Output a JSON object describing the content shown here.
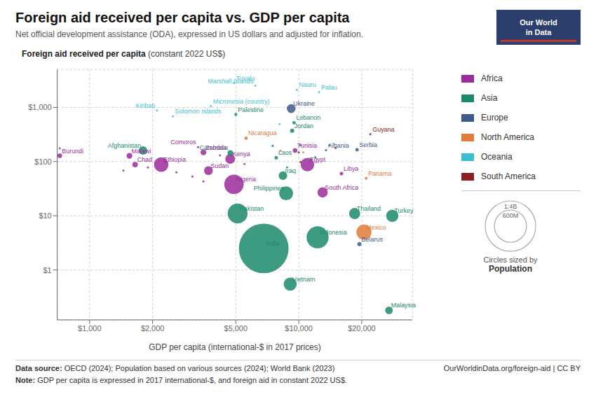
{
  "chart_data": {
    "type": "scatter",
    "title": "Foreign aid received per capita vs. GDP per capita",
    "subtitle": "Net official development assistance (ODA), expressed in US dollars and adjusted for inflation.",
    "ylabel_bold": "Foreign aid received per capita",
    "ylabel_normal": " (constant 2022 US$)",
    "xlabel": "GDP per capita (international-$ in 2017 prices)",
    "log": true,
    "grid": true,
    "xlim": [
      700,
      35000
    ],
    "ylim": [
      0.12,
      5000
    ],
    "xticks": [
      {
        "value": 1000,
        "label": "$1,000"
      },
      {
        "value": 2000,
        "label": "$2,000"
      },
      {
        "value": 5000,
        "label": "$5,000"
      },
      {
        "value": 10000,
        "label": "$10,000"
      },
      {
        "value": 20000,
        "label": "$20,000"
      }
    ],
    "yticks": [
      {
        "value": 1,
        "label": "$1"
      },
      {
        "value": 10,
        "label": "$10"
      },
      {
        "value": 100,
        "label": "$100"
      },
      {
        "value": 1000,
        "label": "$1,000"
      }
    ],
    "series": [
      {
        "name": "Africa",
        "color": "#9B2C9B",
        "labels": [
          "Comoros",
          "Zambia",
          "Kenya",
          "Tunisia",
          "Egypt",
          "Malawi",
          "Chad",
          "Ethiopia",
          "Sudan",
          "Burundi",
          "Nigeria",
          "South Africa",
          "Libya",
          null,
          null,
          null,
          null,
          null,
          null,
          null,
          null,
          null
        ],
        "x": [
          3300,
          3500,
          4700,
          9600,
          11000,
          1550,
          1650,
          2200,
          3700,
          720,
          4900,
          13000,
          16000,
          720,
          1450,
          1900,
          2300,
          2600,
          3100,
          3500,
          4200,
          5500
        ],
        "y": [
          185,
          148,
          112,
          160,
          88,
          128,
          88,
          88,
          68,
          128,
          38,
          27,
          60,
          175,
          68,
          78,
          98,
          63,
          53,
          43,
          130,
          90
        ],
        "population": [
          870000,
          19000000,
          54000000,
          12000000,
          104000000,
          19000000,
          17000000,
          120000000,
          44000000,
          12000000,
          213000000,
          60000000,
          7000000,
          500000,
          400000,
          400000,
          400000,
          400000,
          400000,
          400000,
          1000000,
          800000
        ]
      },
      {
        "name": "Asia",
        "color": "#1B8A6B",
        "labels": [
          "Palestine",
          "Lebanon",
          "Jordan",
          "Afghanistan",
          "Cambodia",
          "Laos",
          "Pakistan",
          "India",
          "Philippines",
          "Iraq",
          "Thailand",
          "Turkey",
          "Indonesia",
          "Vietnam",
          "Malaysia",
          null,
          null,
          null
        ],
        "x": [
          5000,
          9500,
          9300,
          1800,
          4700,
          7800,
          5100,
          6800,
          8700,
          8400,
          18500,
          28000,
          12300,
          9100,
          27000,
          7500,
          8800,
          11500
        ],
        "y": [
          740,
          520,
          370,
          160,
          145,
          118,
          11,
          2.5,
          26,
          55,
          11,
          10,
          4,
          0.55,
          0.18,
          195,
          78,
          110
        ],
        "population": [
          5200000,
          6800000,
          10200000,
          40000000,
          17000000,
          7200000,
          225000000,
          1400000000,
          111000000,
          41000000,
          70000000,
          85000000,
          275000000,
          98000000,
          33000000,
          3000000,
          2000000,
          1500000
        ]
      },
      {
        "name": "Europe",
        "color": "#3D5A8A",
        "labels": [
          "Ukraine",
          "Albania",
          "Serbia",
          "Belarus",
          null,
          null,
          null
        ],
        "x": [
          9200,
          13500,
          19000,
          19500,
          10200,
          12000,
          14000
        ],
        "y": [
          950,
          162,
          165,
          3,
          200,
          120,
          200
        ],
        "population": [
          44000000,
          2800000,
          6900000,
          9500000,
          2000000,
          1500000,
          1000000
        ]
      },
      {
        "name": "North America",
        "color": "#E07B3A",
        "labels": [
          "Nicaragua",
          "Panama",
          "Mexico",
          null,
          null
        ],
        "x": [
          5600,
          21000,
          20500,
          8200,
          10500
        ],
        "y": [
          270,
          49,
          5,
          158,
          148
        ],
        "population": [
          6600000,
          4400000,
          130000000,
          1000000,
          1000000
        ]
      },
      {
        "name": "Oceania",
        "color": "#3BBFCF",
        "labels": [
          "Tuvalu",
          "Marshall Islands",
          "Nauru",
          "Palau",
          "Micronesia (country)",
          "Kiribati",
          "Solomon Islands",
          null
        ],
        "x": [
          4900,
          6200,
          9800,
          12500,
          3800,
          2100,
          2500,
          8100
        ],
        "y": [
          2800,
          2500,
          2100,
          1900,
          1050,
          870,
          680,
          490
        ],
        "population": [
          11000,
          42000,
          10000,
          18000,
          115000,
          119000,
          720000,
          50000
        ]
      },
      {
        "name": "South America",
        "color": "#8B2020",
        "labels": [
          "Guyana",
          null,
          null,
          null
        ],
        "x": [
          22000,
          15000,
          10200,
          10000
        ],
        "y": [
          320,
          178,
          98,
          148
        ],
        "population": [
          800000,
          500000,
          700000,
          600000
        ]
      }
    ],
    "size_legend": {
      "labels": [
        "1:4B",
        "600M"
      ],
      "title": "Circles sized by",
      "name": "Population"
    },
    "logo": {
      "lines": [
        "Our World",
        "in Data"
      ],
      "color": "#2C3E6B",
      "accent": "#c0392b"
    },
    "source_label": "Data source:",
    "source": "OECD (2024); Population based on various sources (2024); World Bank (2023)",
    "credit": "OurWorldinData.org/foreign-aid | CC BY",
    "note_label": "Note:",
    "note": "GDP per capita is expressed in 2017 international-$, and foreign aid in constant 2022 US$."
  }
}
